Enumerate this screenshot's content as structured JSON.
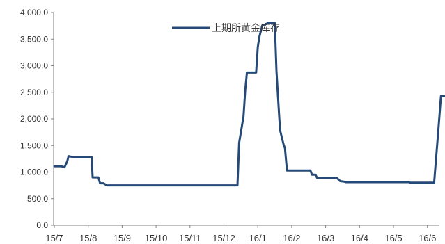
{
  "chart_data": {
    "type": "line",
    "title": "",
    "xlabel": "",
    "ylabel": "",
    "ylim": [
      0,
      4000
    ],
    "ytick_values": [
      0,
      500,
      1000,
      1500,
      2000,
      2500,
      3000,
      3500,
      4000
    ],
    "ytick_labels": [
      "0.0",
      "500.0",
      "1,000.0",
      "1,500.0",
      "2,000.0",
      "2,500.0",
      "3,000.0",
      "3,500.0",
      "4,000.0"
    ],
    "x_categories": [
      "15/7",
      "15/8",
      "15/9",
      "15/10",
      "15/11",
      "15/12",
      "16/1",
      "16/2",
      "16/3",
      "16/4",
      "16/5",
      "16/6"
    ],
    "grid": false,
    "legend_position": "top-center",
    "series": [
      {
        "name": "上期所黄金库存",
        "color": "#264a78",
        "points": [
          [
            0.0,
            1110
          ],
          [
            0.2,
            1110
          ],
          [
            0.3,
            1090
          ],
          [
            0.38,
            1200
          ],
          [
            0.42,
            1300
          ],
          [
            0.55,
            1280
          ],
          [
            1.1,
            1280
          ],
          [
            1.13,
            900
          ],
          [
            1.3,
            900
          ],
          [
            1.35,
            790
          ],
          [
            1.45,
            790
          ],
          [
            1.55,
            750
          ],
          [
            2.0,
            750
          ],
          [
            5.4,
            750
          ],
          [
            5.45,
            1550
          ],
          [
            5.58,
            2050
          ],
          [
            5.63,
            2550
          ],
          [
            5.68,
            2870
          ],
          [
            5.95,
            2870
          ],
          [
            6.0,
            3350
          ],
          [
            6.05,
            3550
          ],
          [
            6.13,
            3750
          ],
          [
            6.3,
            3800
          ],
          [
            6.5,
            3800
          ],
          [
            6.55,
            2900
          ],
          [
            6.63,
            2050
          ],
          [
            6.66,
            1780
          ],
          [
            6.76,
            1520
          ],
          [
            6.8,
            1450
          ],
          [
            6.86,
            1030
          ],
          [
            7.55,
            1030
          ],
          [
            7.6,
            950
          ],
          [
            7.7,
            950
          ],
          [
            7.75,
            890
          ],
          [
            8.33,
            890
          ],
          [
            8.43,
            830
          ],
          [
            8.55,
            820
          ],
          [
            8.6,
            810
          ],
          [
            9.8,
            810
          ],
          [
            9.95,
            810
          ],
          [
            10.45,
            810
          ],
          [
            10.5,
            800
          ],
          [
            11.2,
            800
          ],
          [
            11.33,
            1850
          ],
          [
            11.4,
            2430
          ],
          [
            11.9,
            2430
          ],
          [
            11.95,
            2000
          ]
        ]
      }
    ]
  }
}
